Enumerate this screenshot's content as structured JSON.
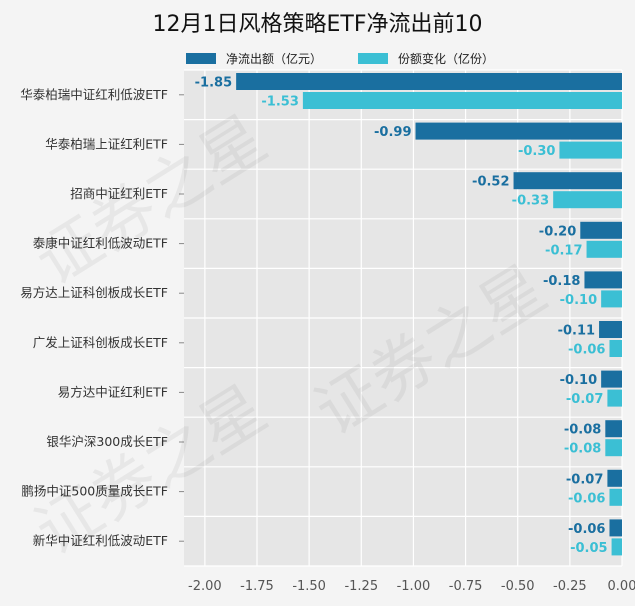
{
  "chart_data": {
    "type": "bar",
    "orientation": "horizontal",
    "title": "12月1日风格策略ETF净流出前10",
    "categories": [
      "华泰柏瑞中证红利低波ETF",
      "华泰柏瑞上证红利ETF",
      "招商中证红利ETF",
      "泰康中证红利低波动ETF",
      "易方达上证科创板成长ETF",
      "广发上证科创板成长ETF",
      "易方达中证红利ETF",
      "银华沪深300成长ETF",
      "鹏扬中证500质量成长ETF",
      "新华中证红利低波动ETF"
    ],
    "series": [
      {
        "name": "净流出额（亿元）",
        "color": "#1a6fa0",
        "values": [
          -1.85,
          -0.99,
          -0.52,
          -0.2,
          -0.18,
          -0.11,
          -0.1,
          -0.08,
          -0.07,
          -0.06
        ],
        "labels": [
          "-1.85",
          "-0.99",
          "-0.52",
          "-0.20",
          "-0.18",
          "-0.11",
          "-0.10",
          "-0.08",
          "-0.07",
          "-0.06"
        ]
      },
      {
        "name": "份额变化（亿份）",
        "color": "#3bbfd4",
        "values": [
          -1.53,
          -0.3,
          -0.33,
          -0.17,
          -0.1,
          -0.06,
          -0.07,
          -0.08,
          -0.06,
          -0.05
        ],
        "labels": [
          "-1.53",
          "-0.30",
          "-0.33",
          "-0.17",
          "-0.10",
          "-0.06",
          "-0.07",
          "-0.08",
          "-0.06",
          "-0.05"
        ]
      }
    ],
    "xlim": [
      -2.1,
      0.0
    ],
    "xticks": [
      -2.0,
      -1.75,
      -1.5,
      -1.25,
      -1.0,
      -0.75,
      -0.5,
      -0.25,
      0.0
    ],
    "xtick_labels": [
      "-2.00",
      "-1.75",
      "-1.50",
      "-1.25",
      "-1.00",
      "-0.75",
      "-0.50",
      "-0.25",
      "0.00"
    ],
    "grid": true,
    "legend_position": "top"
  },
  "watermark_text": "证券之星"
}
